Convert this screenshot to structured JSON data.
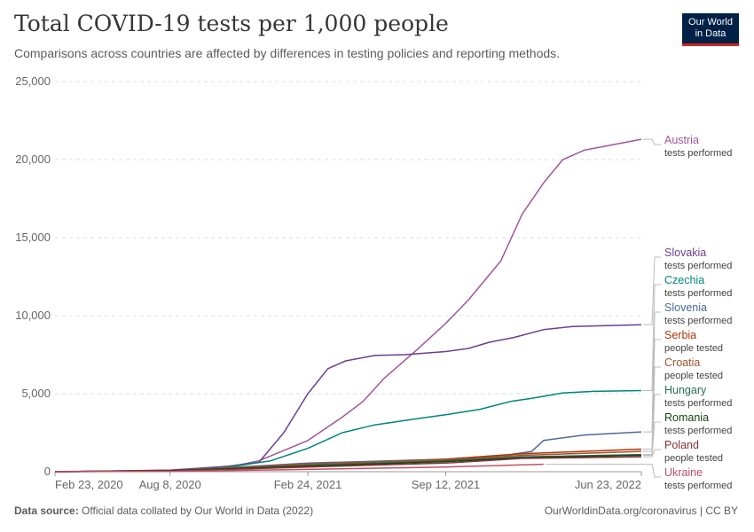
{
  "header": {
    "title": "Total COVID-19 tests per 1,000 people",
    "subtitle": "Comparisons across countries are affected by differences in testing policies and reporting methods."
  },
  "logo": {
    "line1": "Our World",
    "line2": "in Data"
  },
  "footer": {
    "source_label": "Data source:",
    "source_text": "Official data collated by Our World in Data (2022)",
    "link": "OurWorldinData.org/coronavirus | CC BY"
  },
  "chart_data": {
    "type": "line",
    "title": "Total COVID-19 tests per 1,000 people",
    "subtitle": "Comparisons across countries are affected by differences in testing policies and reporting methods.",
    "x_range": [
      "2020-02-23",
      "2022-06-23"
    ],
    "x_tick_labels": [
      "Feb 23, 2020",
      "Aug 8, 2020",
      "Feb 24, 2021",
      "Sep 12, 2021",
      "Jun 23, 2022"
    ],
    "x_tick_dates": [
      "2020-02-23",
      "2020-08-08",
      "2021-02-24",
      "2021-09-12",
      "2022-06-23"
    ],
    "ylim": [
      0,
      25000
    ],
    "y_ticks": [
      0,
      5000,
      10000,
      15000,
      20000,
      25000
    ],
    "y_tick_labels": [
      "0",
      "5,000",
      "10,000",
      "15,000",
      "20,000",
      "25,000"
    ],
    "grid": "horizontal dashed",
    "legend": "right, labels at line ends",
    "series": [
      {
        "name": "Austria",
        "note": "tests performed",
        "color": "#a2559c",
        "points": [
          [
            "2020-02-23",
            0
          ],
          [
            "2020-05-01",
            30
          ],
          [
            "2020-08-08",
            100
          ],
          [
            "2020-11-01",
            300
          ],
          [
            "2020-12-15",
            700
          ],
          [
            "2021-02-24",
            2000
          ],
          [
            "2021-04-15",
            3500
          ],
          [
            "2021-05-15",
            4500
          ],
          [
            "2021-06-15",
            6000
          ],
          [
            "2021-08-01",
            7800
          ],
          [
            "2021-09-12",
            9500
          ],
          [
            "2021-10-15",
            11000
          ],
          [
            "2021-12-01",
            13500
          ],
          [
            "2022-01-01",
            16500
          ],
          [
            "2022-02-01",
            18500
          ],
          [
            "2022-03-01",
            20000
          ],
          [
            "2022-04-01",
            20600
          ],
          [
            "2022-06-23",
            21300
          ]
        ]
      },
      {
        "name": "Slovakia",
        "note": "tests performed",
        "color": "#6d3e91",
        "points": [
          [
            "2020-02-23",
            0
          ],
          [
            "2020-08-08",
            100
          ],
          [
            "2020-11-01",
            350
          ],
          [
            "2020-12-15",
            600
          ],
          [
            "2021-01-20",
            2500
          ],
          [
            "2021-02-24",
            5000
          ],
          [
            "2021-03-25",
            6600
          ],
          [
            "2021-04-20",
            7100
          ],
          [
            "2021-06-01",
            7450
          ],
          [
            "2021-07-15",
            7500
          ],
          [
            "2021-09-12",
            7700
          ],
          [
            "2021-10-15",
            7900
          ],
          [
            "2021-11-15",
            8300
          ],
          [
            "2021-12-20",
            8600
          ],
          [
            "2022-02-01",
            9100
          ],
          [
            "2022-03-15",
            9300
          ],
          [
            "2022-06-23",
            9420
          ]
        ]
      },
      {
        "name": "Czechia",
        "note": "tests performed",
        "color": "#00847e",
        "points": [
          [
            "2020-02-23",
            0
          ],
          [
            "2020-08-08",
            50
          ],
          [
            "2020-11-01",
            300
          ],
          [
            "2021-01-01",
            700
          ],
          [
            "2021-02-24",
            1500
          ],
          [
            "2021-04-15",
            2500
          ],
          [
            "2021-06-01",
            3000
          ],
          [
            "2021-08-01",
            3400
          ],
          [
            "2021-09-12",
            3650
          ],
          [
            "2021-11-01",
            4000
          ],
          [
            "2021-12-15",
            4500
          ],
          [
            "2022-01-15",
            4700
          ],
          [
            "2022-03-01",
            5050
          ],
          [
            "2022-04-15",
            5150
          ],
          [
            "2022-06-23",
            5200
          ]
        ]
      },
      {
        "name": "Slovenia",
        "note": "tests performed",
        "color": "#4c6a9c",
        "points": [
          [
            "2020-02-23",
            0
          ],
          [
            "2020-08-08",
            50
          ],
          [
            "2021-02-24",
            550
          ],
          [
            "2021-09-12",
            800
          ],
          [
            "2021-12-15",
            1100
          ],
          [
            "2022-01-15",
            1300
          ],
          [
            "2022-02-01",
            2000
          ],
          [
            "2022-04-01",
            2350
          ],
          [
            "2022-06-23",
            2550
          ]
        ]
      },
      {
        "name": "Serbia",
        "note": "people tested",
        "color": "#b13507",
        "points": [
          [
            "2020-02-23",
            0
          ],
          [
            "2020-08-08",
            80
          ],
          [
            "2021-02-24",
            420
          ],
          [
            "2021-09-12",
            800
          ],
          [
            "2022-01-01",
            1150
          ],
          [
            "2022-06-23",
            1450
          ]
        ]
      },
      {
        "name": "Croatia",
        "note": "people tested",
        "color": "#a0522d",
        "points": [
          [
            "2020-02-23",
            0
          ],
          [
            "2020-08-08",
            60
          ],
          [
            "2021-02-24",
            500
          ],
          [
            "2021-09-12",
            750
          ],
          [
            "2022-01-01",
            1050
          ],
          [
            "2022-06-23",
            1300
          ]
        ]
      },
      {
        "name": "Hungary",
        "note": "tests performed",
        "color": "#286e56",
        "points": [
          [
            "2020-02-23",
            0
          ],
          [
            "2020-08-08",
            60
          ],
          [
            "2021-02-24",
            400
          ],
          [
            "2021-09-12",
            700
          ],
          [
            "2022-01-01",
            950
          ],
          [
            "2022-06-23",
            1100
          ]
        ]
      },
      {
        "name": "Romania",
        "note": "tests performed",
        "color": "#18470f",
        "points": [
          [
            "2020-02-23",
            0
          ],
          [
            "2020-08-08",
            70
          ],
          [
            "2021-02-24",
            350
          ],
          [
            "2021-09-12",
            650
          ],
          [
            "2022-01-01",
            900
          ],
          [
            "2022-06-23",
            1050
          ]
        ]
      },
      {
        "name": "Poland",
        "note": "people tested",
        "color": "#883039",
        "points": [
          [
            "2020-02-23",
            0
          ],
          [
            "2020-08-08",
            40
          ],
          [
            "2021-02-24",
            300
          ],
          [
            "2021-09-12",
            550
          ],
          [
            "2022-01-01",
            850
          ],
          [
            "2022-06-23",
            950
          ]
        ]
      },
      {
        "name": "Ukraine",
        "note": "tests performed",
        "color": "#c15065",
        "points": [
          [
            "2020-02-23",
            0
          ],
          [
            "2020-08-08",
            20
          ],
          [
            "2021-02-24",
            150
          ],
          [
            "2021-09-12",
            300
          ],
          [
            "2022-02-01",
            480
          ]
        ]
      }
    ]
  }
}
